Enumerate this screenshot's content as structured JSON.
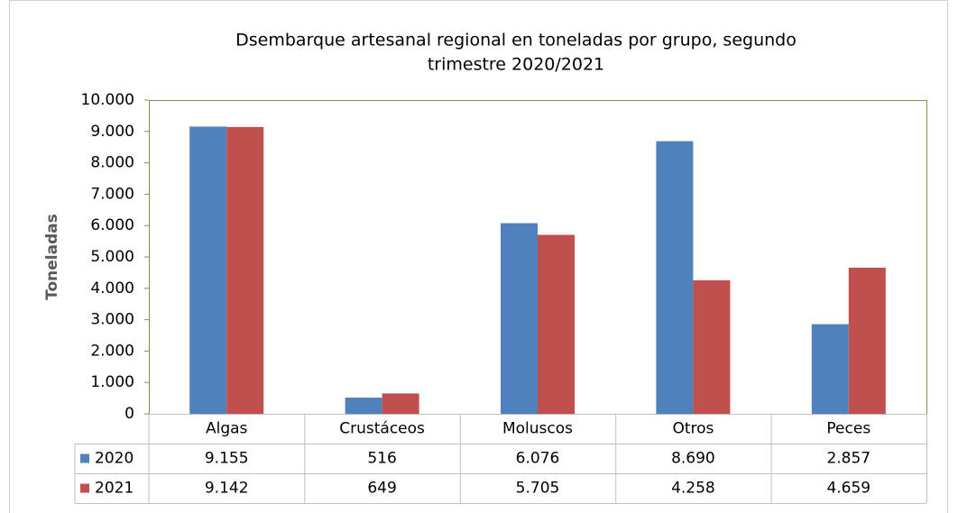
{
  "chart_data": {
    "type": "bar",
    "title": [
      "Dsembarque artesanal regional en toneladas por grupo, segundo",
      "trimestre 2020/2021"
    ],
    "y_label": "Toneladas",
    "categories": [
      "Algas",
      "Crustáceos",
      "Moluscos",
      "Otros",
      "Peces"
    ],
    "series": [
      {
        "name": "2020",
        "color": "#4f81bd",
        "values": [
          9155,
          516,
          6076,
          8690,
          2857
        ],
        "value_labels": [
          "9.155",
          "516",
          "6.076",
          "8.690",
          "2.857"
        ]
      },
      {
        "name": "2021",
        "color": "#c0504d",
        "values": [
          9142,
          649,
          5705,
          4258,
          4659
        ],
        "value_labels": [
          "9.142",
          "649",
          "5.705",
          "4.258",
          "4.659"
        ]
      }
    ],
    "ylim": [
      0,
      10000
    ],
    "yticks": [
      0,
      {
        "value": 1000,
        "label": "1.000"
      },
      {
        "value": 2000,
        "label": "2.000"
      },
      {
        "value": 3000,
        "label": "3.000"
      },
      {
        "value": 4000,
        "label": "4.000"
      },
      {
        "value": 5000,
        "label": "5.000"
      },
      {
        "value": 6000,
        "label": "6.000"
      },
      {
        "value": 7000,
        "label": "7.000"
      },
      {
        "value": 8000,
        "label": "8.000"
      },
      {
        "value": 9000,
        "label": "9.000"
      },
      {
        "value": 10000,
        "label": "10.000"
      }
    ],
    "grid": false,
    "legend": "table"
  }
}
